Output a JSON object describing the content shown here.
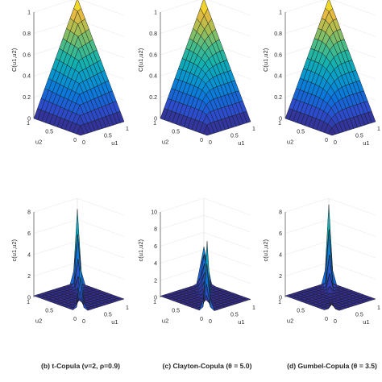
{
  "chart_data": [
    {
      "type": "surface",
      "kind": "cdf",
      "copula": "t",
      "zlabel": "C(u1,u2)",
      "xlabel": "u1",
      "ylabel": "u2",
      "zticks": [
        "0",
        "0.2",
        "0.4",
        "0.6",
        "0.8",
        "1"
      ],
      "xticks": [
        "0",
        "0.5",
        "1"
      ],
      "yticks": [
        "0",
        "0.5",
        "1"
      ],
      "zlim": [
        0,
        1
      ],
      "colormap": "parula"
    },
    {
      "type": "surface",
      "kind": "cdf",
      "copula": "clayton",
      "zlabel": "C(u1,u2)",
      "xlabel": "u1",
      "ylabel": "u2",
      "zticks": [
        "0",
        "0.2",
        "0.4",
        "0.6",
        "0.8",
        "1"
      ],
      "xticks": [
        "0",
        "0.5",
        "1"
      ],
      "yticks": [
        "0",
        "0.5",
        "1"
      ],
      "zlim": [
        0,
        1
      ],
      "colormap": "parula"
    },
    {
      "type": "surface",
      "kind": "cdf",
      "copula": "gumbel",
      "zlabel": "C(u1,u2)",
      "xlabel": "u1",
      "ylabel": "u2",
      "zticks": [
        "0",
        "0.2",
        "0.4",
        "0.6",
        "0.8",
        "1"
      ],
      "xticks": [
        "0",
        "0.5",
        "1"
      ],
      "yticks": [
        "0",
        "0.5",
        "1"
      ],
      "zlim": [
        0,
        1
      ],
      "colormap": "parula"
    },
    {
      "type": "surface",
      "kind": "pdf",
      "copula": "t",
      "zlabel": "c(u1,u2)",
      "xlabel": "u1",
      "ylabel": "u2",
      "zticks": [
        "0",
        "2",
        "4",
        "6",
        "8"
      ],
      "xticks": [
        "0",
        "0.5",
        "1"
      ],
      "yticks": [
        "0",
        "0.5",
        "1"
      ],
      "zlim": [
        0,
        8
      ],
      "colormap": "parula",
      "caption": "(b) t-Copula (ν=2, ρ=0.9)"
    },
    {
      "type": "surface",
      "kind": "pdf",
      "copula": "clayton",
      "zlabel": "c(u1,u2)",
      "xlabel": "u1",
      "ylabel": "u2",
      "zticks": [
        "0",
        "2",
        "4",
        "6",
        "8",
        "10"
      ],
      "xticks": [
        "0",
        "0.5",
        "1"
      ],
      "yticks": [
        "0",
        "0.5",
        "1"
      ],
      "zlim": [
        0,
        10
      ],
      "colormap": "parula",
      "caption": "(c) Clayton-Copula (θ = 5.0)"
    },
    {
      "type": "surface",
      "kind": "pdf",
      "copula": "gumbel",
      "zlabel": "c(u1,u2)",
      "xlabel": "u1",
      "ylabel": "u2",
      "zticks": [
        "0",
        "2",
        "4",
        "6",
        "8"
      ],
      "xticks": [
        "0",
        "0.5",
        "1"
      ],
      "yticks": [
        "0",
        "0.5",
        "1"
      ],
      "zlim": [
        0,
        8
      ],
      "colormap": "parula",
      "caption": "(d) Gumbel-Copula (θ = 3.5)"
    }
  ]
}
